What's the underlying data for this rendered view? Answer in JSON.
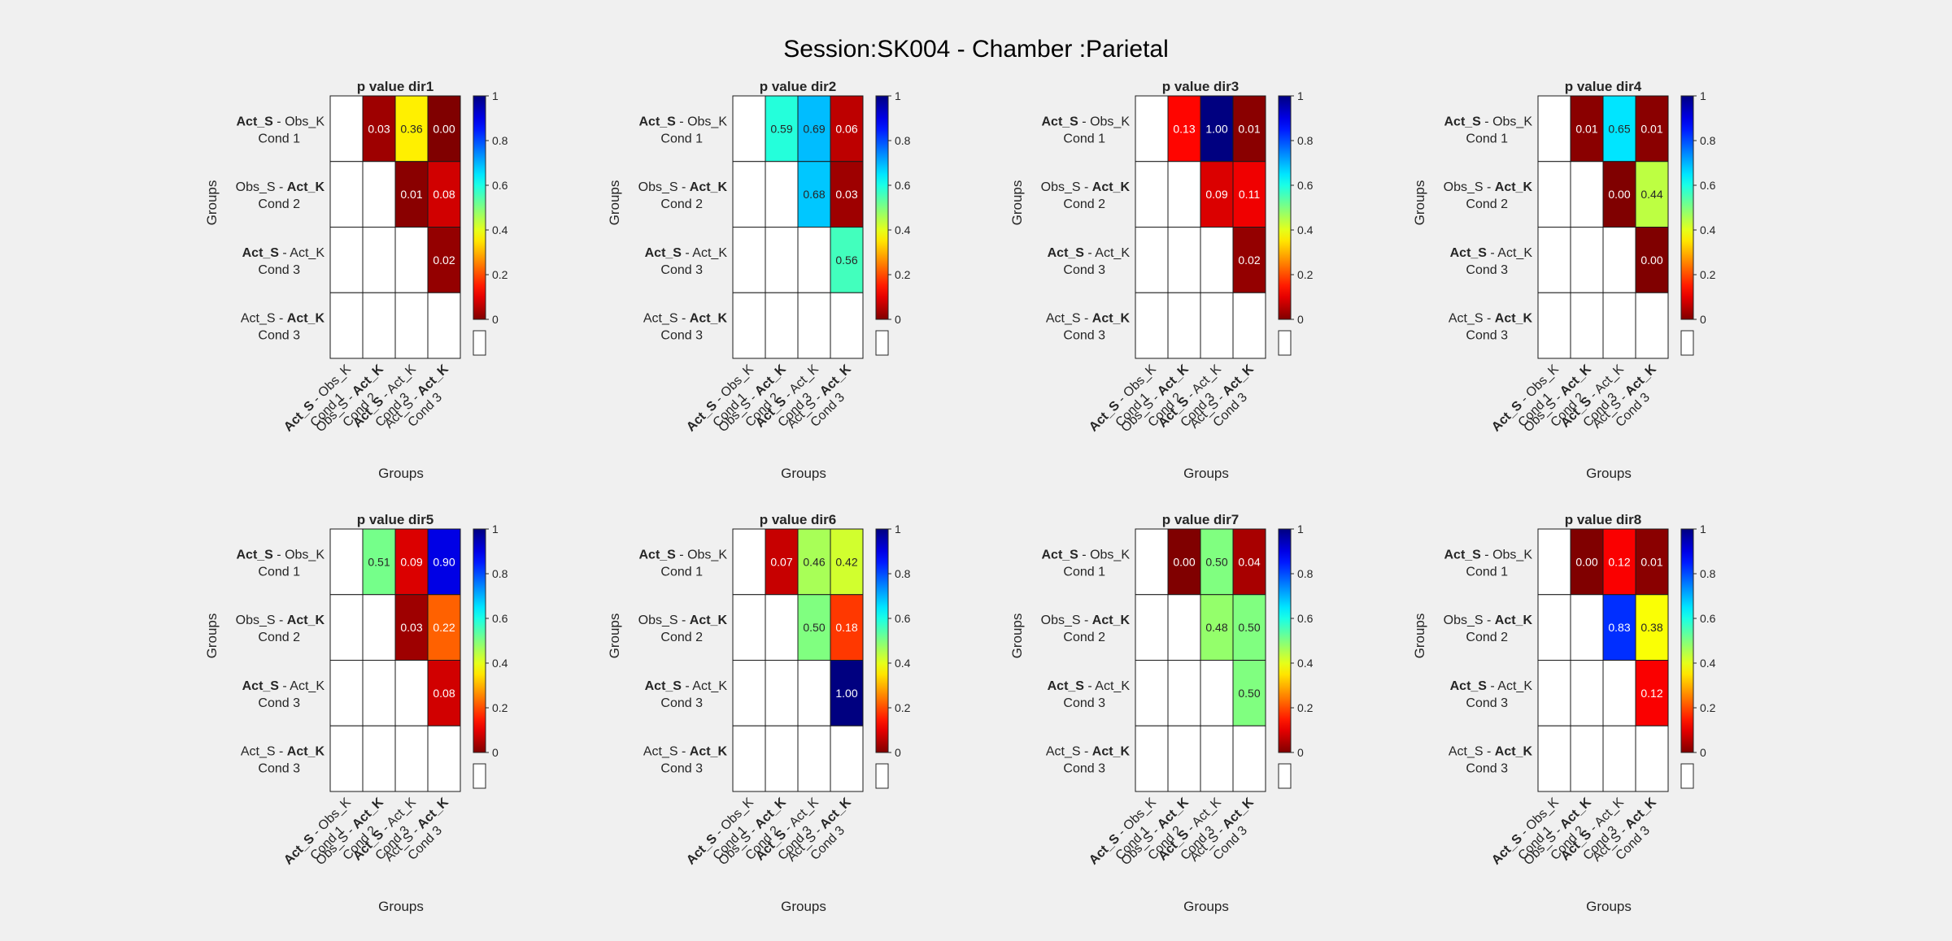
{
  "figure": {
    "title": "Session:SK004 - Chamber :Parietal"
  },
  "row_labels": [
    [
      {
        "text": "Act_S",
        "bold": true
      },
      {
        "text": " - Obs_K",
        "bold": false
      },
      {
        "text": "Cond 1",
        "bold": false
      }
    ],
    [
      {
        "text": "Obs_S - ",
        "bold": false
      },
      {
        "text": "Act_K",
        "bold": true
      },
      {
        "text": "Cond 2",
        "bold": false
      }
    ],
    [
      {
        "text": "Act_S",
        "bold": true
      },
      {
        "text": " - Act_K",
        "bold": false
      },
      {
        "text": "Cond 3",
        "bold": false
      }
    ],
    [
      {
        "text": "Act_S - ",
        "bold": false
      },
      {
        "text": "Act_K",
        "bold": true
      },
      {
        "text": "Cond 3",
        "bold": false
      }
    ]
  ],
  "col_labels": [
    [
      {
        "text": "Act_S",
        "bold": true
      },
      {
        "text": " - Obs_K",
        "bold": false
      },
      {
        "text": "Cond 1",
        "bold": false
      }
    ],
    [
      {
        "text": "Obs_S - ",
        "bold": false
      },
      {
        "text": "Act_K",
        "bold": true
      },
      {
        "text": "Cond 2",
        "bold": false
      }
    ],
    [
      {
        "text": "Act_S",
        "bold": true
      },
      {
        "text": " - Act_K",
        "bold": false
      },
      {
        "text": "Cond 3",
        "bold": false
      }
    ],
    [
      {
        "text": "Act_S - ",
        "bold": false
      },
      {
        "text": "Act_K",
        "bold": true
      },
      {
        "text": "Cond 3",
        "bold": false
      }
    ]
  ],
  "colorbar": {
    "ticks": [
      "0",
      "0.2",
      "0.4",
      "0.6",
      "0.8",
      "1"
    ],
    "colormap": "jet-reversed (0 = dark red, 1 = dark blue)",
    "range": [
      0,
      1
    ]
  },
  "chart_data": [
    {
      "type": "heatmap",
      "title": "p value dir1",
      "xlabel": "Groups",
      "ylabel": "Groups",
      "values": [
        [
          null,
          0.03,
          0.36,
          0.0
        ],
        [
          null,
          null,
          0.01,
          0.08
        ],
        [
          null,
          null,
          null,
          0.02
        ],
        [
          null,
          null,
          null,
          null
        ]
      ],
      "labels": [
        [
          null,
          "0.03",
          "0.36",
          "0.00"
        ],
        [
          null,
          null,
          "0.01",
          "0.08"
        ],
        [
          null,
          null,
          null,
          "0.02"
        ],
        [
          null,
          null,
          null,
          null
        ]
      ]
    },
    {
      "type": "heatmap",
      "title": "p value dir2",
      "xlabel": "Groups",
      "ylabel": "Groups",
      "values": [
        [
          null,
          0.59,
          0.69,
          0.06
        ],
        [
          null,
          null,
          0.68,
          0.03
        ],
        [
          null,
          null,
          null,
          0.56
        ],
        [
          null,
          null,
          null,
          null
        ]
      ],
      "labels": [
        [
          null,
          "0.59",
          "0.69",
          "0.06"
        ],
        [
          null,
          null,
          "0.68",
          "0.03"
        ],
        [
          null,
          null,
          null,
          "0.56"
        ],
        [
          null,
          null,
          null,
          null
        ]
      ]
    },
    {
      "type": "heatmap",
      "title": "p value dir3",
      "xlabel": "Groups",
      "ylabel": "Groups",
      "values": [
        [
          null,
          0.13,
          1.0,
          0.01
        ],
        [
          null,
          null,
          0.09,
          0.11
        ],
        [
          null,
          null,
          null,
          0.02
        ],
        [
          null,
          null,
          null,
          null
        ]
      ],
      "labels": [
        [
          null,
          "0.13",
          "1.00",
          "0.01"
        ],
        [
          null,
          null,
          "0.09",
          "0.11"
        ],
        [
          null,
          null,
          null,
          "0.02"
        ],
        [
          null,
          null,
          null,
          null
        ]
      ]
    },
    {
      "type": "heatmap",
      "title": "p value dir4",
      "xlabel": "Groups",
      "ylabel": "Groups",
      "values": [
        [
          null,
          0.01,
          0.65,
          0.01
        ],
        [
          null,
          null,
          0.0,
          0.44
        ],
        [
          null,
          null,
          null,
          0.0
        ],
        [
          null,
          null,
          null,
          null
        ]
      ],
      "labels": [
        [
          null,
          "0.01",
          "0.65",
          "0.01"
        ],
        [
          null,
          null,
          "0.00",
          "0.44"
        ],
        [
          null,
          null,
          null,
          "0.00"
        ],
        [
          null,
          null,
          null,
          null
        ]
      ]
    },
    {
      "type": "heatmap",
      "title": "p value dir5",
      "xlabel": "Groups",
      "ylabel": "Groups",
      "values": [
        [
          null,
          0.51,
          0.09,
          0.9
        ],
        [
          null,
          null,
          0.03,
          0.22
        ],
        [
          null,
          null,
          null,
          0.08
        ],
        [
          null,
          null,
          null,
          null
        ]
      ],
      "labels": [
        [
          null,
          "0.51",
          "0.09",
          "0.90"
        ],
        [
          null,
          null,
          "0.03",
          "0.22"
        ],
        [
          null,
          null,
          null,
          "0.08"
        ],
        [
          null,
          null,
          null,
          null
        ]
      ]
    },
    {
      "type": "heatmap",
      "title": "p value dir6",
      "xlabel": "Groups",
      "ylabel": "Groups",
      "values": [
        [
          null,
          0.07,
          0.46,
          0.42
        ],
        [
          null,
          null,
          0.5,
          0.18
        ],
        [
          null,
          null,
          null,
          1.0
        ],
        [
          null,
          null,
          null,
          null
        ]
      ],
      "labels": [
        [
          null,
          "0.07",
          "0.46",
          "0.42"
        ],
        [
          null,
          null,
          "0.50",
          "0.18"
        ],
        [
          null,
          null,
          null,
          "1.00"
        ],
        [
          null,
          null,
          null,
          null
        ]
      ]
    },
    {
      "type": "heatmap",
      "title": "p value dir7",
      "xlabel": "Groups",
      "ylabel": "Groups",
      "values": [
        [
          null,
          0.0,
          0.5,
          0.04
        ],
        [
          null,
          null,
          0.48,
          0.5
        ],
        [
          null,
          null,
          null,
          0.5
        ],
        [
          null,
          null,
          null,
          null
        ]
      ],
      "labels": [
        [
          null,
          "0.00",
          "0.50",
          "0.04"
        ],
        [
          null,
          null,
          "0.48",
          "0.50"
        ],
        [
          null,
          null,
          null,
          "0.50"
        ],
        [
          null,
          null,
          null,
          null
        ]
      ]
    },
    {
      "type": "heatmap",
      "title": "p value dir8",
      "xlabel": "Groups",
      "ylabel": "Groups",
      "values": [
        [
          null,
          0.0,
          0.12,
          0.01
        ],
        [
          null,
          null,
          0.83,
          0.38
        ],
        [
          null,
          null,
          null,
          0.12
        ],
        [
          null,
          null,
          null,
          null
        ]
      ],
      "labels": [
        [
          null,
          "0.00",
          "0.12",
          "0.01"
        ],
        [
          null,
          null,
          "0.83",
          "0.38"
        ],
        [
          null,
          null,
          null,
          "0.12"
        ],
        [
          null,
          null,
          null,
          null
        ]
      ]
    }
  ]
}
